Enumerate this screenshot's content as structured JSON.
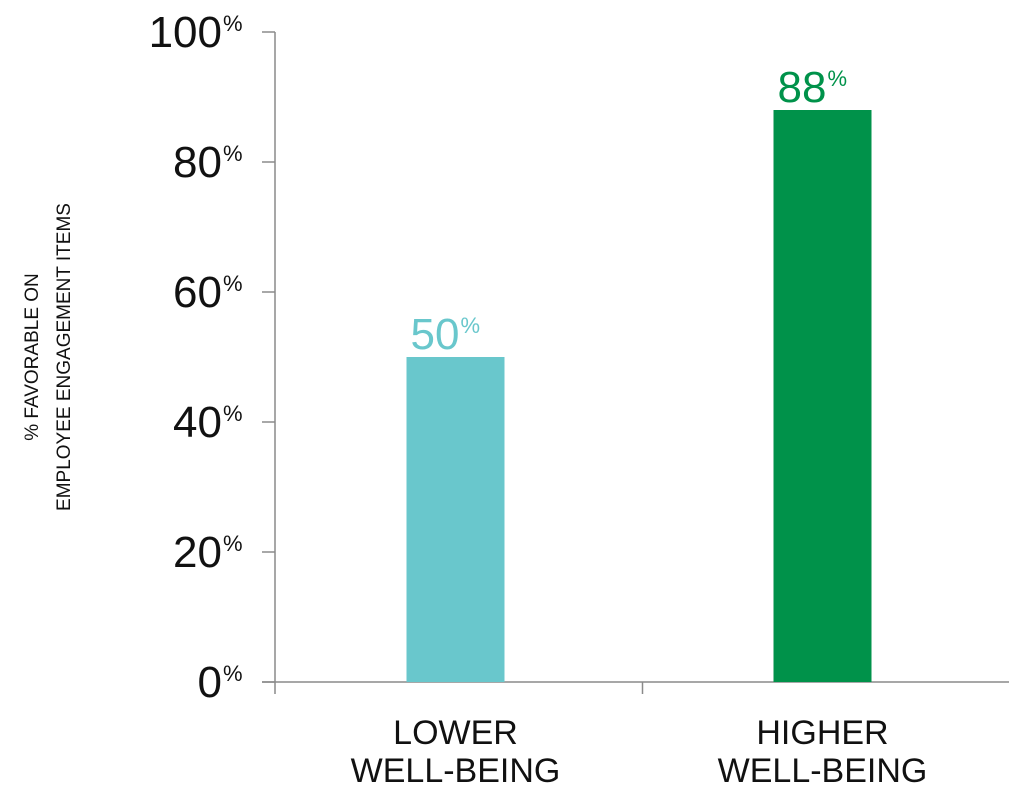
{
  "chart_data": {
    "type": "bar",
    "categories": [
      [
        "LOWER",
        "WELL-BEING"
      ],
      [
        "HIGHER",
        "WELL-BEING"
      ]
    ],
    "values": [
      50,
      88
    ],
    "value_labels": [
      {
        "number": "50",
        "unit": "%"
      },
      {
        "number": "88",
        "unit": "%"
      }
    ],
    "colors": [
      "#69c7cc",
      "#00924a"
    ],
    "ylabel_lines": [
      "% FAVORABLE ON",
      "EMPLOYEE ENGAGEMENT ITEMS"
    ],
    "yticks": [
      {
        "value": 0,
        "number": "0",
        "unit": "%"
      },
      {
        "value": 20,
        "number": "20",
        "unit": "%"
      },
      {
        "value": 40,
        "number": "40",
        "unit": "%"
      },
      {
        "value": 60,
        "number": "60",
        "unit": "%"
      },
      {
        "value": 80,
        "number": "80",
        "unit": "%"
      },
      {
        "value": 100,
        "number": "100",
        "unit": "%"
      }
    ],
    "ylim": [
      0,
      100
    ],
    "grid": false,
    "legend": "none"
  }
}
